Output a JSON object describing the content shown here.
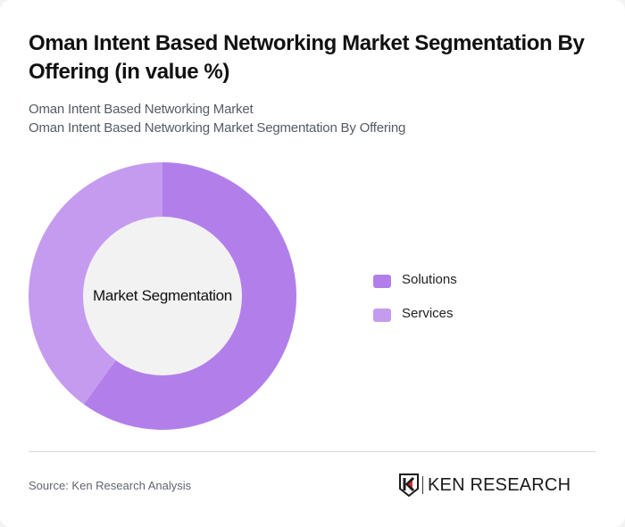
{
  "header": {
    "title": "Oman Intent Based Networking Market Segmentation By Offering (in value %)",
    "subtitle_line1": "Oman Intent Based Networking Market",
    "subtitle_line2": "Oman Intent Based Networking Market Segmentation By Offering"
  },
  "chart": {
    "center_label": "Market Segmentation",
    "legend": [
      {
        "label": "Solutions",
        "color": "#b27fea"
      },
      {
        "label": "Services",
        "color": "#c59bef"
      }
    ]
  },
  "footer": {
    "source": "Source: Ken Research Analysis",
    "logo_text": "KEN RESEARCH"
  },
  "chart_data": {
    "type": "pie",
    "variant": "donut",
    "title": "Oman Intent Based Networking Market Segmentation By Offering (in value %)",
    "subtitle": "Oman Intent Based Networking Market Segmentation By Offering",
    "center_label": "Market Segmentation",
    "categories": [
      "Solutions",
      "Services"
    ],
    "values": [
      60,
      40
    ],
    "unit": "%",
    "colors": [
      "#b27fea",
      "#c59bef"
    ],
    "start_angle_deg": 0,
    "direction": "clockwise",
    "legend_position": "right",
    "data_labels_shown": false
  }
}
